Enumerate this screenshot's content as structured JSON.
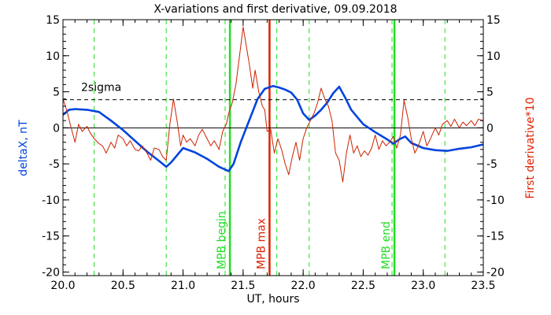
{
  "chart_data": {
    "type": "line",
    "title": "X-variations and first derivative, 09.09.2018",
    "xlabel": "UT, hours",
    "ylabel_left": "deltaX, nT",
    "ylabel_right": "First derivative*10",
    "xlim": [
      20.0,
      23.5
    ],
    "ylim": [
      -20.5,
      15
    ],
    "x_ticks": [
      "20.0",
      "20.5",
      "21.0",
      "21.5",
      "22.0",
      "22.5",
      "23.0",
      "23.5"
    ],
    "x_tick_values": [
      20.0,
      20.5,
      21.0,
      21.5,
      22.0,
      22.5,
      23.0,
      23.5
    ],
    "y_ticks": [
      "15",
      "10",
      "5",
      "0",
      "-5",
      "-10",
      "-15",
      "-20"
    ],
    "y_tick_values": [
      15,
      10,
      5,
      0,
      -5,
      -10,
      -15,
      -20
    ],
    "colors": {
      "deltaX": "#0044dd",
      "derivative": "#cc2200",
      "mpb_boundary": "#22dd22",
      "mpb_max": "#dd2200",
      "right_axis_label": "#dd2200",
      "left_axis_label": "#0044dd"
    },
    "threshold": {
      "label": "2sigma",
      "value": 3.9
    },
    "zero_line": 0,
    "dashed_verticals": [
      20.26,
      20.86,
      21.35,
      21.78,
      22.05,
      22.74,
      23.18
    ],
    "markers": [
      {
        "label": "MPB begin",
        "x": 21.39,
        "color": "#22dd22"
      },
      {
        "label": "MPB max",
        "x": 21.72,
        "color": "#dd2200"
      },
      {
        "label": "MPB end",
        "x": 22.76,
        "color": "#22dd22"
      }
    ],
    "series": [
      {
        "name": "deltaX",
        "axis": "left",
        "x": [
          20.0,
          20.05,
          20.1,
          20.2,
          20.3,
          20.4,
          20.5,
          20.6,
          20.7,
          20.8,
          20.86,
          20.9,
          21.0,
          21.1,
          21.2,
          21.3,
          21.38,
          21.42,
          21.48,
          21.55,
          21.62,
          21.68,
          21.75,
          21.8,
          21.85,
          21.9,
          21.95,
          22.0,
          22.05,
          22.1,
          22.15,
          22.2,
          22.25,
          22.3,
          22.35,
          22.4,
          22.5,
          22.6,
          22.7,
          22.75,
          22.8,
          22.85,
          22.9,
          23.0,
          23.1,
          23.2,
          23.3,
          23.4,
          23.5
        ],
        "values": [
          1.8,
          2.5,
          2.6,
          2.5,
          2.2,
          1.0,
          -0.3,
          -1.8,
          -3.3,
          -4.6,
          -5.4,
          -4.8,
          -2.8,
          -3.4,
          -4.3,
          -5.4,
          -6.0,
          -5.0,
          -2.0,
          1.0,
          4.0,
          5.4,
          5.8,
          5.6,
          5.3,
          4.9,
          3.9,
          2.0,
          1.1,
          1.7,
          2.5,
          3.5,
          4.8,
          5.7,
          4.2,
          2.5,
          0.5,
          -0.6,
          -1.6,
          -2.2,
          -1.6,
          -1.2,
          -2.1,
          -2.8,
          -3.1,
          -3.2,
          -2.9,
          -2.7,
          -2.3
        ]
      },
      {
        "name": "First derivative*10",
        "axis": "right",
        "x": [
          20.0,
          20.03,
          20.06,
          20.1,
          20.13,
          20.16,
          20.2,
          20.23,
          20.26,
          20.3,
          20.33,
          20.36,
          20.4,
          20.43,
          20.46,
          20.5,
          20.53,
          20.56,
          20.6,
          20.63,
          20.66,
          20.7,
          20.73,
          20.76,
          20.8,
          20.83,
          20.86,
          20.89,
          20.92,
          20.95,
          20.98,
          21.0,
          21.03,
          21.06,
          21.1,
          21.13,
          21.16,
          21.2,
          21.23,
          21.26,
          21.3,
          21.33,
          21.36,
          21.38,
          21.41,
          21.44,
          21.47,
          21.5,
          21.52,
          21.55,
          21.58,
          21.6,
          21.63,
          21.66,
          21.68,
          21.7,
          21.73,
          21.76,
          21.79,
          21.82,
          21.85,
          21.88,
          21.91,
          21.94,
          21.97,
          22.0,
          22.03,
          22.06,
          22.09,
          22.12,
          22.15,
          22.18,
          22.21,
          22.24,
          22.27,
          22.3,
          22.33,
          22.36,
          22.39,
          22.42,
          22.45,
          22.48,
          22.51,
          22.54,
          22.57,
          22.6,
          22.63,
          22.66,
          22.69,
          22.72,
          22.75,
          22.78,
          22.81,
          22.84,
          22.87,
          22.9,
          22.93,
          22.96,
          23.0,
          23.03,
          23.06,
          23.1,
          23.13,
          23.16,
          23.2,
          23.23,
          23.26,
          23.3,
          23.33,
          23.36,
          23.4,
          23.43,
          23.46,
          23.5
        ],
        "values": [
          4.0,
          2.5,
          0.5,
          -2.0,
          0.5,
          -0.5,
          0.2,
          -0.8,
          -1.5,
          -2.2,
          -2.5,
          -3.5,
          -2.0,
          -2.8,
          -1.0,
          -1.5,
          -2.5,
          -1.8,
          -3.0,
          -3.2,
          -2.5,
          -3.5,
          -4.5,
          -2.8,
          -3.0,
          -4.0,
          -4.5,
          0.5,
          4.0,
          1.0,
          -2.5,
          -1.0,
          -2.0,
          -1.5,
          -2.5,
          -1.0,
          -0.2,
          -1.5,
          -2.5,
          -1.8,
          -3.0,
          -0.5,
          0.5,
          2.0,
          3.5,
          6.0,
          10.0,
          14.0,
          12.0,
          9.0,
          5.5,
          8.0,
          5.0,
          3.0,
          2.5,
          -0.5,
          -0.2,
          -3.5,
          -1.5,
          -3.0,
          -5.0,
          -6.5,
          -4.0,
          -2.0,
          -4.5,
          -1.5,
          0.0,
          1.0,
          2.0,
          3.5,
          5.5,
          4.0,
          3.0,
          1.0,
          -3.5,
          -4.5,
          -7.5,
          -3.5,
          -1.0,
          -3.5,
          -2.5,
          -4.0,
          -3.2,
          -3.8,
          -2.8,
          -1.0,
          -3.0,
          -1.8,
          -2.5,
          -2.0,
          -1.2,
          -2.8,
          -1.0,
          3.8,
          1.5,
          -1.5,
          -3.5,
          -2.5,
          -0.5,
          -2.5,
          -1.5,
          0.0,
          -1.0,
          0.5,
          1.0,
          0.2,
          1.2,
          0.0,
          0.8,
          0.3,
          1.0,
          0.3,
          1.2,
          1.0
        ]
      }
    ]
  }
}
